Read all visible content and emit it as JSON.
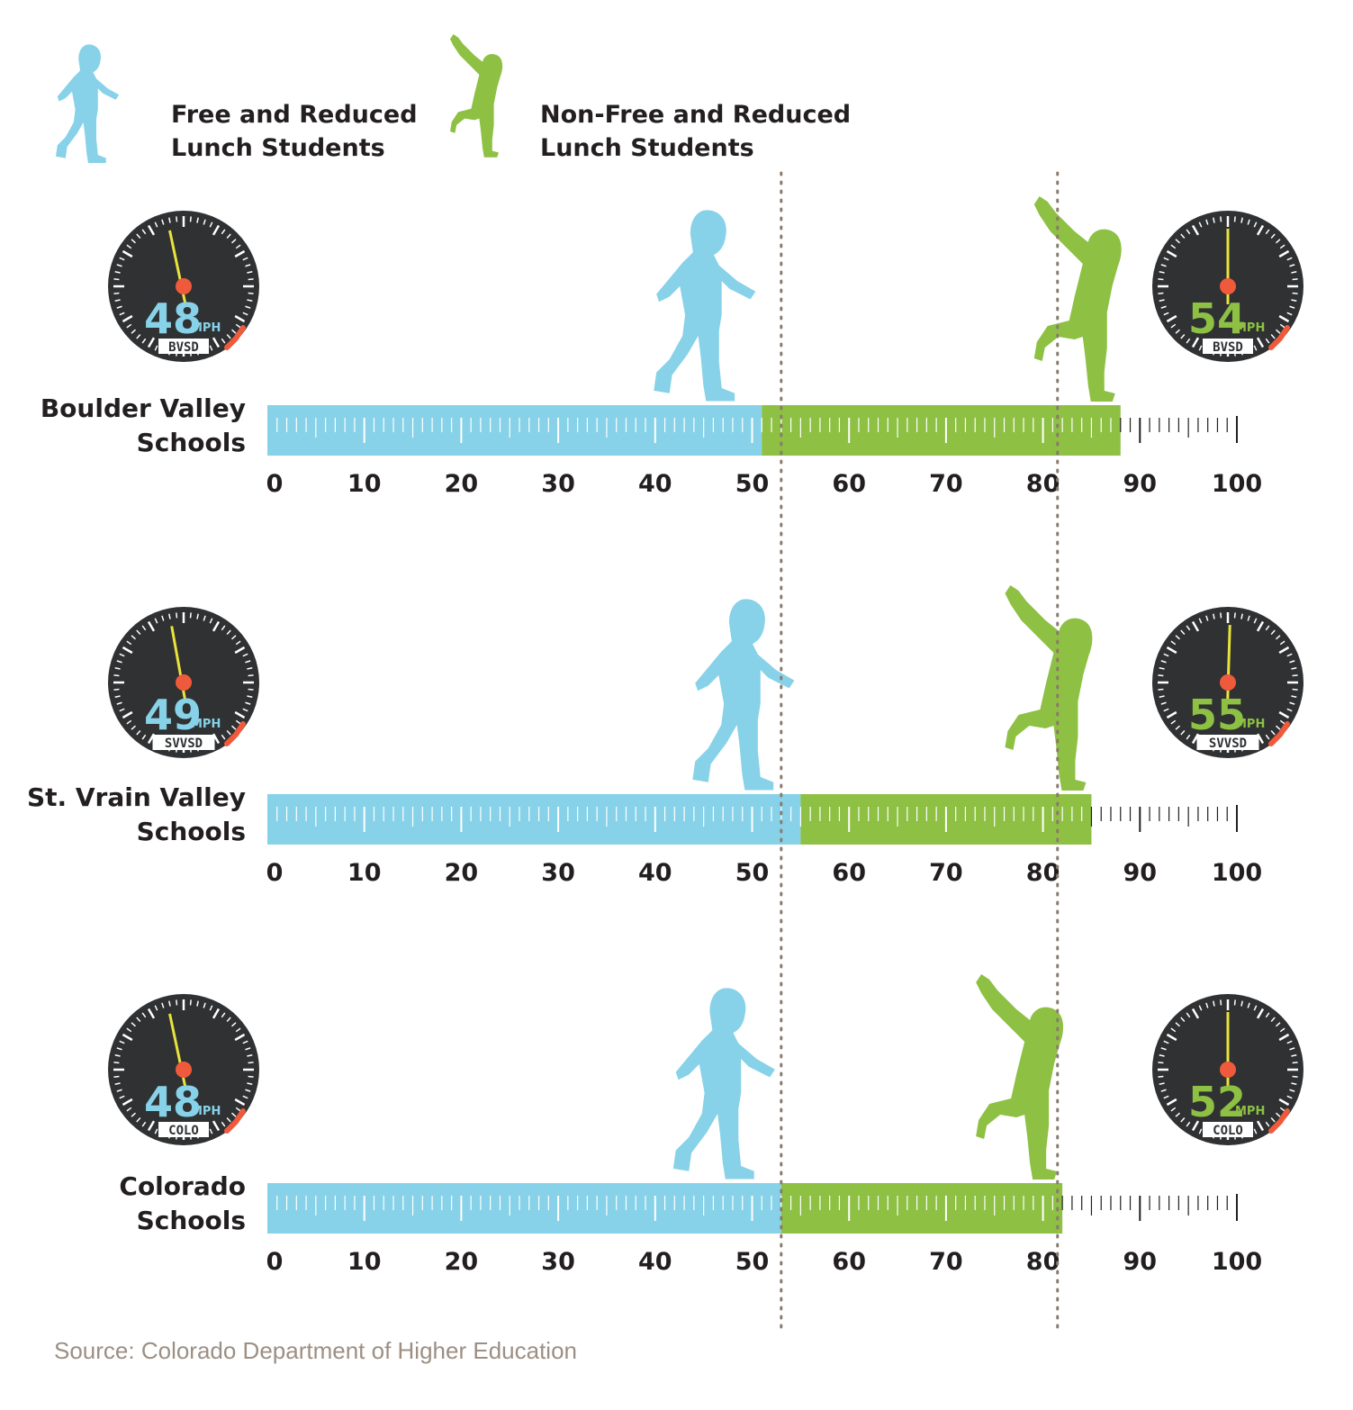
{
  "colors": {
    "free_reduced": "#87d2e8",
    "non_free_reduced": "#8dc043",
    "gauge_face": "#2f3133",
    "needle": "#e8e33c",
    "hub": "#f05a3c",
    "redline": "#f05a3c",
    "text": "#231f20",
    "source_text": "#9c8f84",
    "reference_line": "#8a7b6c"
  },
  "icons": {
    "free_reduced": "walking-child-silhouette-icon",
    "non_free_reduced": "reaching-child-silhouette-icon",
    "gauge": "speedometer-icon"
  },
  "legend": {
    "free_reduced": "Free and Reduced\nLunch Students",
    "non_free_reduced": "Non-Free and Reduced\nLunch Students"
  },
  "gauge_unit": "MPH",
  "source": "Source: Colorado Department of Higher Education",
  "chart_data": {
    "type": "bar",
    "orientation": "horizontal",
    "stacked": true,
    "x_ticks": [
      "0",
      "10",
      "20",
      "30",
      "40",
      "50",
      "60",
      "70",
      "80",
      "90",
      "100"
    ],
    "xlim": [
      0,
      100
    ],
    "categories": [
      "Boulder Valley\nSchools",
      "St. Vrain Valley\nSchools",
      "Colorado\nSchools"
    ],
    "series": [
      {
        "name": "Free and Reduced Lunch Students",
        "values": [
          51,
          55,
          53
        ]
      },
      {
        "name": "Non-Free and Reduced Lunch Students",
        "values": [
          37,
          30,
          29
        ]
      }
    ],
    "reference_lines": [
      53,
      81.5
    ],
    "gauges": [
      {
        "free_reduced": "48",
        "non_free_reduced": "54",
        "code": "BVSD"
      },
      {
        "free_reduced": "49",
        "non_free_reduced": "55",
        "code": "SVVSD"
      },
      {
        "free_reduced": "48",
        "non_free_reduced": "52",
        "code": "COLO"
      }
    ]
  }
}
